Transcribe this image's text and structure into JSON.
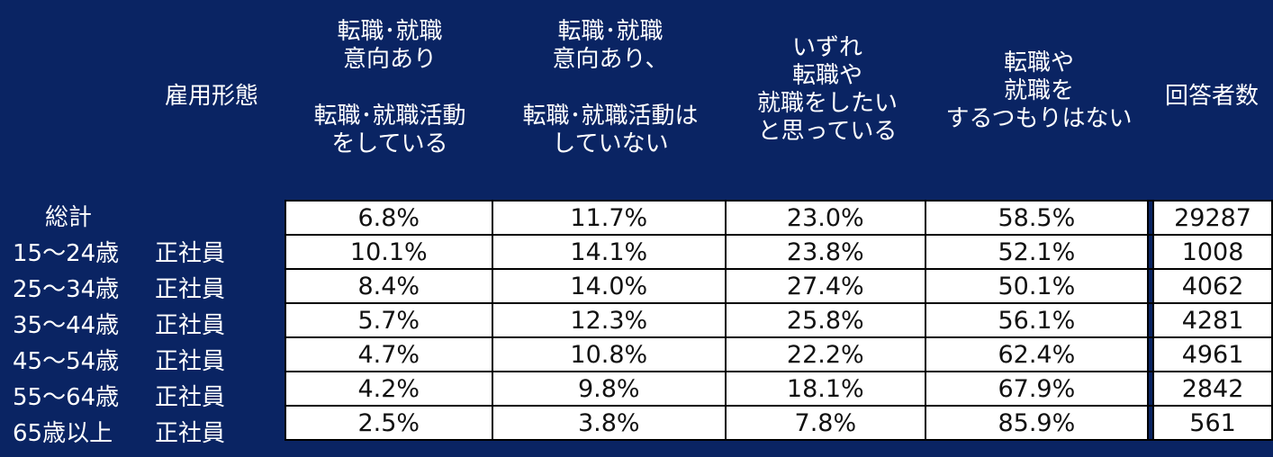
{
  "chart_data": {
    "type": "table",
    "row_header_label": "雇用形態",
    "columns": [
      {
        "top": "転職･就職\n意向あり",
        "bottom": "転職･就職活動\nをしている"
      },
      {
        "top": "転職･就職\n意向あり、",
        "bottom": "転職･就職活動は\nしていない"
      },
      {
        "top": "いずれ\n転職や\n就職をしたい\nと思っている",
        "bottom": ""
      },
      {
        "top": "転職や\n就職を\nするつもりはない",
        "bottom": ""
      },
      {
        "top": "回答者数",
        "bottom": ""
      }
    ],
    "rows": [
      {
        "age": "総計",
        "employment": "",
        "values": [
          "6.8%",
          "11.7%",
          "23.0%",
          "58.5%",
          "29287"
        ]
      },
      {
        "age": "15～24歳",
        "employment": "正社員",
        "values": [
          "10.1%",
          "14.1%",
          "23.8%",
          "52.1%",
          "1008"
        ]
      },
      {
        "age": "25～34歳",
        "employment": "正社員",
        "values": [
          "8.4%",
          "14.0%",
          "27.4%",
          "50.1%",
          "4062"
        ]
      },
      {
        "age": "35～44歳",
        "employment": "正社員",
        "values": [
          "5.7%",
          "12.3%",
          "25.8%",
          "56.1%",
          "4281"
        ]
      },
      {
        "age": "45～54歳",
        "employment": "正社員",
        "values": [
          "4.7%",
          "10.8%",
          "22.2%",
          "62.4%",
          "4961"
        ]
      },
      {
        "age": "55～64歳",
        "employment": "正社員",
        "values": [
          "4.2%",
          "9.8%",
          "18.1%",
          "67.9%",
          "2842"
        ]
      },
      {
        "age": "65歳以上",
        "employment": "正社員",
        "values": [
          "2.5%",
          "3.8%",
          "7.8%",
          "85.9%",
          "561"
        ]
      }
    ]
  },
  "colors": {
    "background": "#0a2463",
    "header_text": "#ffffff",
    "cell_background": "#ffffff",
    "cell_text": "#111111",
    "border": "#000000"
  }
}
